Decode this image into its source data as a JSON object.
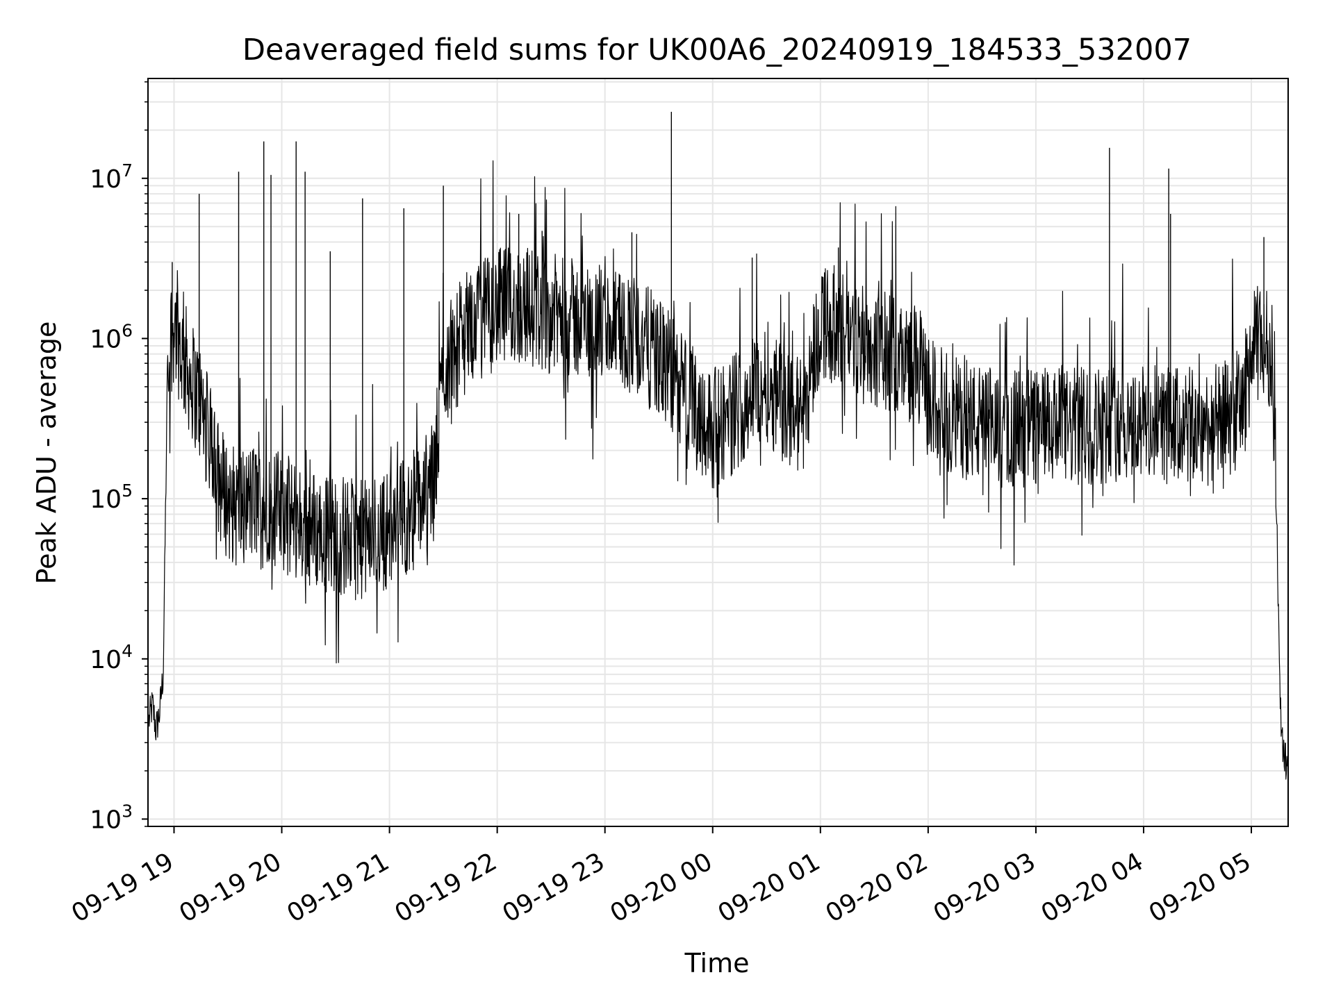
{
  "chart_data": {
    "type": "line",
    "title": "Deaveraged field sums for UK00A6_20240919_184533_532007",
    "xlabel": "Time",
    "ylabel": "Peak ADU - average",
    "yscale": "log",
    "ylim": [
      900,
      42000000
    ],
    "xlim": [
      "09-19 18:45:30",
      "09-20 05:20:30"
    ],
    "grid": true,
    "line_color": "#000000",
    "grid_color": "#e6e6e6",
    "x_ticks": [
      "09-19 19",
      "09-19 20",
      "09-19 21",
      "09-19 22",
      "09-19 23",
      "09-20 00",
      "09-20 01",
      "09-20 02",
      "09-20 03",
      "09-20 04",
      "09-20 05"
    ],
    "y_ticks": [
      {
        "base": "10",
        "exp": "3"
      },
      {
        "base": "10",
        "exp": "4"
      },
      {
        "base": "10",
        "exp": "5"
      },
      {
        "base": "10",
        "exp": "6"
      },
      {
        "base": "10",
        "exp": "7"
      }
    ],
    "series": [
      {
        "x": [
          "09-19 18:46",
          "09-19 18:48",
          "09-19 18:50",
          "09-19 18:52",
          "09-19 18:54",
          "09-19 18:56",
          "09-19 18:58",
          "09-19 19:00",
          "09-19 19:05",
          "09-19 19:10",
          "09-19 19:15",
          "09-19 19:20",
          "09-19 19:25",
          "09-19 19:30",
          "09-19 19:35",
          "09-19 19:40",
          "09-19 19:50",
          "09-19 20:00",
          "09-19 20:15",
          "09-19 20:30",
          "09-19 20:45",
          "09-19 21:00",
          "09-19 21:15",
          "09-19 21:25",
          "09-19 21:30",
          "09-19 21:45",
          "09-19 22:00",
          "09-19 22:15",
          "09-19 22:30",
          "09-19 22:45",
          "09-19 23:00",
          "09-19 23:15",
          "09-19 23:30",
          "09-19 23:45",
          "09-20 00:00",
          "09-20 00:10",
          "09-20 00:20",
          "09-20 00:30",
          "09-20 00:40",
          "09-20 00:50",
          "09-20 01:00",
          "09-20 01:15",
          "09-20 01:30",
          "09-20 01:45",
          "09-20 01:55",
          "09-20 02:00",
          "09-20 02:15",
          "09-20 02:30",
          "09-20 02:45",
          "09-20 03:00",
          "09-20 03:15",
          "09-20 03:30",
          "09-20 03:45",
          "09-20 04:00",
          "09-20 04:15",
          "09-20 04:30",
          "09-20 04:45",
          "09-20 04:55",
          "09-20 05:00",
          "09-20 05:05",
          "09-20 05:10",
          "09-20 05:12",
          "09-20 05:14",
          "09-20 05:16",
          "09-20 05:18",
          "09-20 05:20"
        ],
        "y": [
          4000,
          5000,
          3500,
          4500,
          8000,
          300000,
          900000,
          1200000,
          700000,
          500000,
          350000,
          200000,
          120000,
          90000,
          80000,
          85000,
          90000,
          75000,
          60000,
          55000,
          50000,
          60000,
          80000,
          120000,
          600000,
          1100000,
          1400000,
          1500000,
          1300000,
          1200000,
          1100000,
          1000000,
          700000,
          400000,
          250000,
          300000,
          400000,
          500000,
          350000,
          300000,
          1200000,
          1000000,
          800000,
          700000,
          600000,
          400000,
          300000,
          260000,
          250000,
          260000,
          250000,
          260000,
          280000,
          270000,
          260000,
          250000,
          280000,
          350000,
          700000,
          900000,
          800000,
          500000,
          100000,
          5000,
          2500,
          2000
        ],
        "spikes": [
          {
            "x": "09-19 18:59",
            "y": 3000000
          },
          {
            "x": "09-19 19:14",
            "y": 8000000
          },
          {
            "x": "09-19 19:36",
            "y": 11000000
          },
          {
            "x": "09-19 19:50",
            "y": 17000000
          },
          {
            "x": "09-19 19:54",
            "y": 10500000
          },
          {
            "x": "09-19 20:08",
            "y": 17000000
          },
          {
            "x": "09-19 20:13",
            "y": 11000000
          },
          {
            "x": "09-19 20:27",
            "y": 3500000
          },
          {
            "x": "09-19 20:45",
            "y": 7500000
          },
          {
            "x": "09-19 21:08",
            "y": 6500000
          },
          {
            "x": "09-19 21:30",
            "y": 9000000
          },
          {
            "x": "09-19 22:12",
            "y": 6000000
          },
          {
            "x": "09-19 22:25",
            "y": 4700000
          },
          {
            "x": "09-19 23:15",
            "y": 4600000
          },
          {
            "x": "09-19 23:37",
            "y": 26000000
          },
          {
            "x": "09-20 00:22",
            "y": 3200000
          },
          {
            "x": "09-20 01:10",
            "y": 3700000
          },
          {
            "x": "09-20 03:41",
            "y": 15500000
          },
          {
            "x": "09-20 04:14",
            "y": 11500000
          },
          {
            "x": "09-20 04:15",
            "y": 6000000
          },
          {
            "x": "09-20 05:07",
            "y": 4300000
          }
        ]
      }
    ]
  }
}
